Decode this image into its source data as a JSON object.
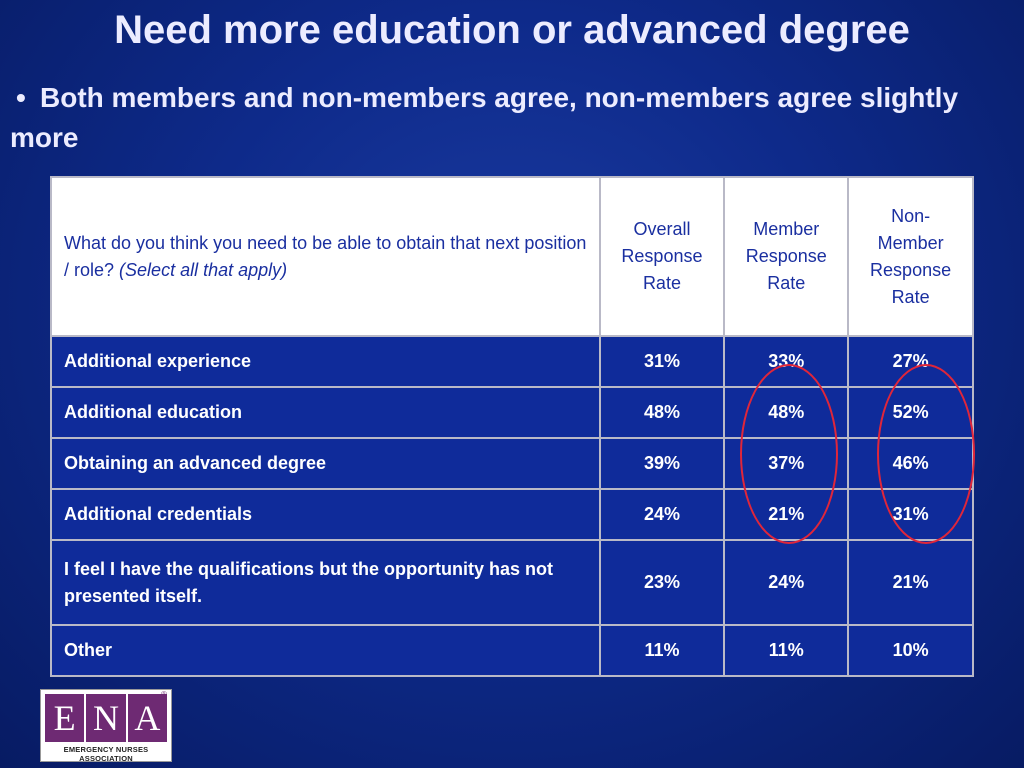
{
  "slide": {
    "title": "Need more education or advanced degree",
    "bullet_marker": "•",
    "bullet_text": "Both members and non-members agree, non-members agree slightly more"
  },
  "table": {
    "headers": {
      "question": "What do you think you need to be able to obtain that next position / role?",
      "question_note": "(Select all that apply)",
      "overall": "Overall Response Rate",
      "member": "Member Response Rate",
      "nonmember": "Non-Member Response Rate"
    },
    "rows": [
      {
        "label": "Additional experience",
        "overall": "31%",
        "member": "33%",
        "nonmember": "27%"
      },
      {
        "label": "Additional education",
        "overall": "48%",
        "member": "48%",
        "nonmember": "52%"
      },
      {
        "label": "Obtaining an advanced degree",
        "overall": "39%",
        "member": "37%",
        "nonmember": "46%"
      },
      {
        "label": "Additional credentials",
        "overall": "24%",
        "member": "21%",
        "nonmember": "31%"
      },
      {
        "label": "I feel I have the qualifications but the opportunity has not presented itself.",
        "overall": "23%",
        "member": "24%",
        "nonmember": "21%"
      },
      {
        "label": "Other",
        "overall": "11%",
        "member": "11%",
        "nonmember": "10%"
      }
    ]
  },
  "annotations": {
    "circle_color": "#e0263a",
    "highlighted_columns": [
      "member",
      "nonmember"
    ]
  },
  "logo": {
    "letters": [
      "E",
      "N",
      "A"
    ],
    "registered": "®",
    "subtitle": "EMERGENCY NURSES ASSOCIATION",
    "brand_color": "#6e2a73"
  },
  "colors": {
    "background": "#0e2a8a",
    "table_row": "#0f2b9a",
    "header_text": "#1a2fa0"
  }
}
